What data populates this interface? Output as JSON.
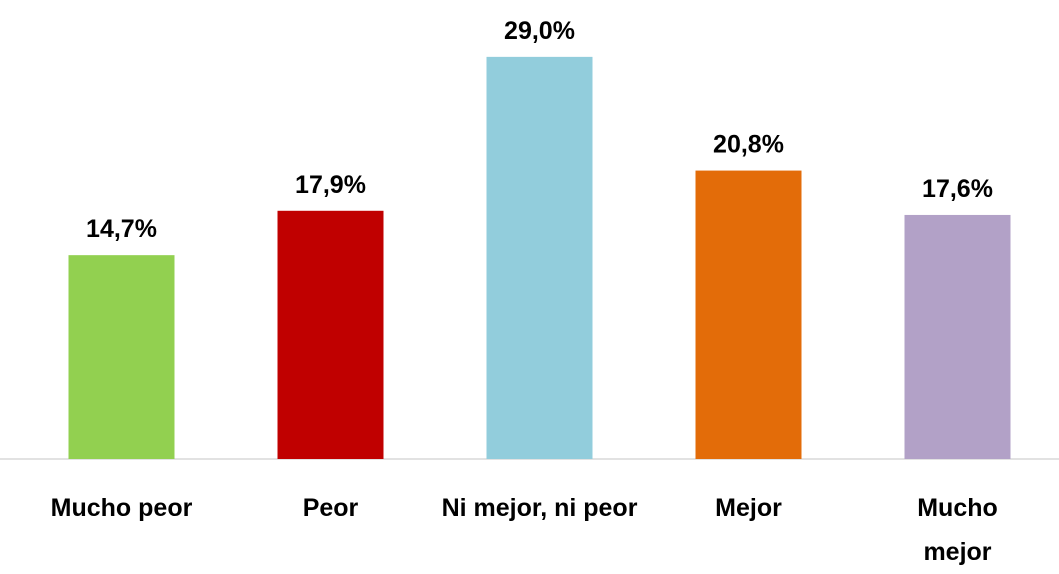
{
  "chart_data": {
    "type": "bar",
    "categories": [
      "Mucho peor",
      "Peor",
      "Ni mejor, ni peor",
      "Mejor",
      "Mucho mejor"
    ],
    "values": [
      14.7,
      17.9,
      29.0,
      20.8,
      17.6
    ],
    "value_labels": [
      "14,7%",
      "17,9%",
      "29,0%",
      "20,8%",
      "17,6%"
    ],
    "colors": [
      "#92d050",
      "#c00000",
      "#92cddc",
      "#e36c09",
      "#b2a1c7"
    ],
    "ylim": [
      0,
      30
    ]
  }
}
